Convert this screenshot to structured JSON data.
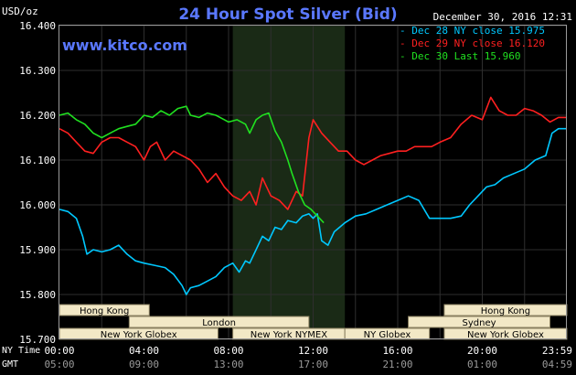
{
  "header": {
    "title": "24 Hour Spot Silver (Bid)",
    "unit": "USD/oz",
    "date": "December 30, 2016 12:31",
    "site": "www.kitco.com"
  },
  "legend": [
    {
      "label": "Dec 28 NY close 15.975",
      "color": "#00c8ff"
    },
    {
      "label": "Dec 29 NY close 16.120",
      "color": "#ff2020"
    },
    {
      "label": "Dec 30 Last 15.960",
      "color": "#20e020"
    }
  ],
  "timezone_labels": {
    "ny": "NY Time",
    "gmt": "GMT"
  },
  "colors": {
    "background": "#000000",
    "grid": "#2e2e2e",
    "shaded": "#1a2a16",
    "session_box": "#f2e8c6",
    "session_text": "#000000"
  },
  "sessions": {
    "row1": [
      {
        "label": "Hong Kong",
        "start": 0,
        "end": 4.25
      },
      {
        "label": "Hong Kong",
        "start": 18.2,
        "end": 24
      }
    ],
    "row2": [
      {
        "label": "London",
        "start": 3.3,
        "end": 11.8
      },
      {
        "label": "Sydney",
        "start": 16.5,
        "end": 23.2
      }
    ],
    "row3": [
      {
        "label": "New York Globex",
        "start": 0,
        "end": 7.5
      },
      {
        "label": "New York NYMEX",
        "start": 8.2,
        "end": 13.5
      },
      {
        "label": "NY Globex",
        "start": 13.5,
        "end": 17.5
      },
      {
        "label": "New York Globex",
        "start": 18.2,
        "end": 24
      }
    ]
  },
  "chart_data": {
    "type": "line",
    "title": "24 Hour Spot Silver (Bid)",
    "ylabel": "USD/oz",
    "xlim": [
      0,
      24
    ],
    "ylim": [
      15.7,
      16.4
    ],
    "y_ticks": [
      "15.700",
      "15.800",
      "15.900",
      "16.000",
      "16.100",
      "16.200",
      "16.300",
      "16.400"
    ],
    "y_tick_values": [
      15.7,
      15.8,
      15.9,
      16.0,
      16.1,
      16.2,
      16.3,
      16.4
    ],
    "x_ticks_ny": [
      "00:00",
      "04:00",
      "08:00",
      "12:00",
      "16:00",
      "20:00",
      "23:59"
    ],
    "x_ticks_gmt": [
      "05:00",
      "09:00",
      "13:00",
      "17:00",
      "21:00",
      "01:00",
      "04:59"
    ],
    "x_tick_values": [
      0,
      4,
      8,
      12,
      16,
      20,
      24
    ],
    "shaded_region": [
      8.2,
      13.5
    ],
    "grid": true,
    "series": [
      {
        "name": "Dec 28 NY close 15.975",
        "color": "#00c8ff",
        "points": [
          [
            0,
            15.99
          ],
          [
            0.4,
            15.985
          ],
          [
            0.8,
            15.97
          ],
          [
            1.1,
            15.93
          ],
          [
            1.3,
            15.89
          ],
          [
            1.6,
            15.9
          ],
          [
            2.0,
            15.895
          ],
          [
            2.4,
            15.9
          ],
          [
            2.8,
            15.91
          ],
          [
            3.2,
            15.89
          ],
          [
            3.6,
            15.875
          ],
          [
            4.0,
            15.87
          ],
          [
            4.5,
            15.865
          ],
          [
            5.0,
            15.86
          ],
          [
            5.4,
            15.845
          ],
          [
            5.8,
            15.82
          ],
          [
            6.0,
            15.8
          ],
          [
            6.2,
            15.815
          ],
          [
            6.6,
            15.82
          ],
          [
            7.0,
            15.83
          ],
          [
            7.4,
            15.84
          ],
          [
            7.8,
            15.86
          ],
          [
            8.2,
            15.87
          ],
          [
            8.5,
            15.85
          ],
          [
            8.8,
            15.875
          ],
          [
            9.0,
            15.87
          ],
          [
            9.3,
            15.9
          ],
          [
            9.6,
            15.93
          ],
          [
            9.9,
            15.92
          ],
          [
            10.2,
            15.95
          ],
          [
            10.5,
            15.945
          ],
          [
            10.8,
            15.965
          ],
          [
            11.2,
            15.96
          ],
          [
            11.5,
            15.975
          ],
          [
            11.8,
            15.98
          ],
          [
            12.0,
            15.97
          ],
          [
            12.2,
            15.98
          ],
          [
            12.4,
            15.92
          ],
          [
            12.7,
            15.91
          ],
          [
            13.0,
            15.94
          ],
          [
            13.5,
            15.96
          ],
          [
            14.0,
            15.975
          ],
          [
            14.5,
            15.98
          ],
          [
            15.0,
            15.99
          ],
          [
            15.5,
            16.0
          ],
          [
            16.0,
            16.01
          ],
          [
            16.5,
            16.02
          ],
          [
            17.0,
            16.01
          ],
          [
            17.5,
            15.97
          ],
          [
            18.0,
            15.97
          ],
          [
            18.5,
            15.97
          ],
          [
            19.0,
            15.975
          ],
          [
            19.4,
            16.0
          ],
          [
            19.8,
            16.02
          ],
          [
            20.2,
            16.04
          ],
          [
            20.6,
            16.045
          ],
          [
            21.0,
            16.06
          ],
          [
            21.5,
            16.07
          ],
          [
            22.0,
            16.08
          ],
          [
            22.5,
            16.1
          ],
          [
            23.0,
            16.11
          ],
          [
            23.3,
            16.16
          ],
          [
            23.6,
            16.17
          ],
          [
            24.0,
            16.17
          ]
        ]
      },
      {
        "name": "Dec 29 NY close 16.120",
        "color": "#ff2020",
        "points": [
          [
            0,
            16.17
          ],
          [
            0.4,
            16.16
          ],
          [
            0.8,
            16.14
          ],
          [
            1.2,
            16.12
          ],
          [
            1.6,
            16.115
          ],
          [
            2.0,
            16.14
          ],
          [
            2.4,
            16.15
          ],
          [
            2.8,
            16.15
          ],
          [
            3.2,
            16.14
          ],
          [
            3.6,
            16.13
          ],
          [
            4.0,
            16.1
          ],
          [
            4.3,
            16.13
          ],
          [
            4.6,
            16.14
          ],
          [
            5.0,
            16.1
          ],
          [
            5.4,
            16.12
          ],
          [
            5.8,
            16.11
          ],
          [
            6.2,
            16.1
          ],
          [
            6.6,
            16.08
          ],
          [
            7.0,
            16.05
          ],
          [
            7.4,
            16.07
          ],
          [
            7.8,
            16.04
          ],
          [
            8.2,
            16.02
          ],
          [
            8.6,
            16.01
          ],
          [
            9.0,
            16.03
          ],
          [
            9.3,
            16.0
          ],
          [
            9.6,
            16.06
          ],
          [
            10.0,
            16.02
          ],
          [
            10.4,
            16.01
          ],
          [
            10.8,
            15.99
          ],
          [
            11.2,
            16.03
          ],
          [
            11.5,
            16.02
          ],
          [
            11.8,
            16.15
          ],
          [
            12.0,
            16.19
          ],
          [
            12.4,
            16.16
          ],
          [
            12.8,
            16.14
          ],
          [
            13.2,
            16.12
          ],
          [
            13.6,
            16.12
          ],
          [
            14.0,
            16.1
          ],
          [
            14.4,
            16.09
          ],
          [
            14.8,
            16.1
          ],
          [
            15.2,
            16.11
          ],
          [
            15.6,
            16.115
          ],
          [
            16.0,
            16.12
          ],
          [
            16.4,
            16.12
          ],
          [
            16.8,
            16.13
          ],
          [
            17.2,
            16.13
          ],
          [
            17.6,
            16.13
          ],
          [
            18.0,
            16.14
          ],
          [
            18.5,
            16.15
          ],
          [
            19.0,
            16.18
          ],
          [
            19.5,
            16.2
          ],
          [
            20.0,
            16.19
          ],
          [
            20.4,
            16.24
          ],
          [
            20.8,
            16.21
          ],
          [
            21.2,
            16.2
          ],
          [
            21.6,
            16.2
          ],
          [
            22.0,
            16.215
          ],
          [
            22.4,
            16.21
          ],
          [
            22.8,
            16.2
          ],
          [
            23.2,
            16.185
          ],
          [
            23.6,
            16.195
          ],
          [
            24.0,
            16.195
          ]
        ]
      },
      {
        "name": "Dec 30 Last 15.960",
        "color": "#20e020",
        "points": [
          [
            0,
            16.2
          ],
          [
            0.4,
            16.205
          ],
          [
            0.8,
            16.19
          ],
          [
            1.2,
            16.18
          ],
          [
            1.6,
            16.16
          ],
          [
            2.0,
            16.15
          ],
          [
            2.4,
            16.16
          ],
          [
            2.8,
            16.17
          ],
          [
            3.2,
            16.175
          ],
          [
            3.6,
            16.18
          ],
          [
            4.0,
            16.2
          ],
          [
            4.4,
            16.195
          ],
          [
            4.8,
            16.21
          ],
          [
            5.2,
            16.2
          ],
          [
            5.6,
            16.215
          ],
          [
            6.0,
            16.22
          ],
          [
            6.2,
            16.2
          ],
          [
            6.6,
            16.195
          ],
          [
            7.0,
            16.205
          ],
          [
            7.4,
            16.2
          ],
          [
            7.8,
            16.19
          ],
          [
            8.0,
            16.185
          ],
          [
            8.4,
            16.19
          ],
          [
            8.8,
            16.18
          ],
          [
            9.0,
            16.16
          ],
          [
            9.3,
            16.19
          ],
          [
            9.6,
            16.2
          ],
          [
            9.9,
            16.205
          ],
          [
            10.2,
            16.165
          ],
          [
            10.5,
            16.14
          ],
          [
            10.8,
            16.1
          ],
          [
            11.0,
            16.07
          ],
          [
            11.3,
            16.03
          ],
          [
            11.6,
            16.0
          ],
          [
            11.9,
            15.99
          ],
          [
            12.1,
            15.98
          ],
          [
            12.4,
            15.965
          ],
          [
            12.5,
            15.96
          ]
        ]
      }
    ]
  }
}
